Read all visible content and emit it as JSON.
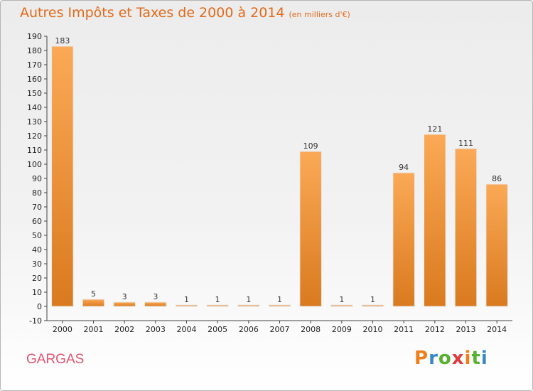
{
  "title": "Autres Impôts et Taxes de 2000 à 2014",
  "unit": "(en milliers d'€)",
  "commune": "GARGAS",
  "logo": {
    "letters": [
      "P",
      "r",
      "o",
      "x",
      "i",
      "t",
      "i"
    ],
    "colors": [
      "#f07f1a",
      "#3a87c8",
      "#58b030",
      "#e03a3a",
      "#f07f1a",
      "#58b030",
      "#3a87c8"
    ]
  },
  "colors": {
    "bar_top": "#fba956",
    "bar_bottom": "#d97a1f",
    "accent": "#e06a1a",
    "commune": "#e0546f"
  },
  "chart_data": {
    "type": "bar",
    "categories": [
      "2000",
      "2001",
      "2002",
      "2003",
      "2004",
      "2005",
      "2006",
      "2007",
      "2008",
      "2009",
      "2010",
      "2011",
      "2012",
      "2013",
      "2014"
    ],
    "values": [
      183,
      5,
      3,
      3,
      1,
      1,
      1,
      1,
      109,
      1,
      1,
      94,
      121,
      111,
      86
    ],
    "title": "Autres Impôts et Taxes de 2000 à 2014",
    "subtitle": "(en milliers d'€)",
    "xlabel": "",
    "ylabel": "",
    "ylim": [
      -10,
      190
    ],
    "ytick_step": 10,
    "grid": false,
    "legend": "none"
  }
}
